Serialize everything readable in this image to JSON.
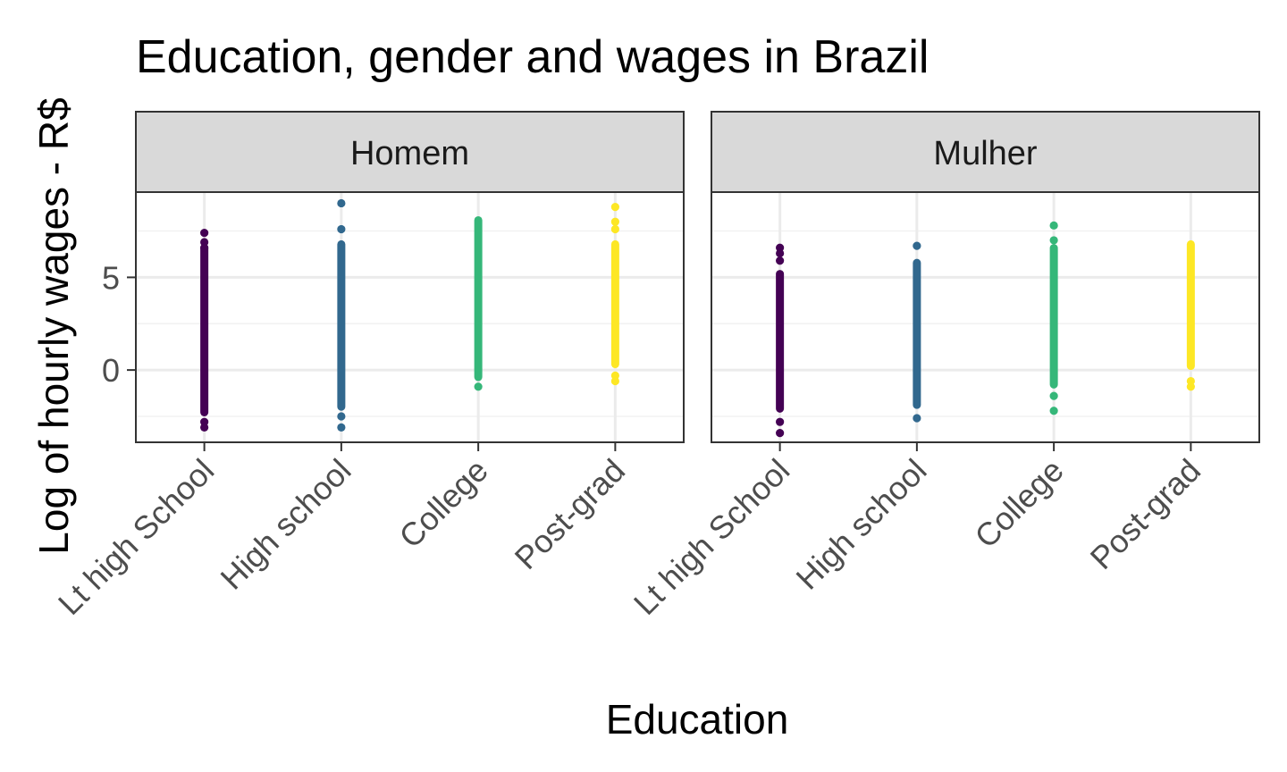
{
  "chart_data": {
    "type": "scatter",
    "title": "Education, gender and wages in Brazil",
    "xlabel": "Education",
    "ylabel": "Log of hourly wages - R$",
    "categories": [
      "Lt high School",
      "High school",
      "College",
      "Post-grad"
    ],
    "category_colors": [
      "#440154",
      "#31688e",
      "#35b779",
      "#fde725"
    ],
    "yticks": [
      0,
      5
    ],
    "ylim": [
      -3.9,
      9.6
    ],
    "grid": true,
    "panels": [
      {
        "name": "Homem",
        "series": [
          {
            "category": "Lt high School",
            "range": [
              -2.5,
              6.8
            ],
            "outliers": [
              7.4,
              6.9,
              6.6,
              -2.8,
              -3.1
            ]
          },
          {
            "category": "High school",
            "range": [
              -2.2,
              7.0
            ],
            "outliers": [
              9.0,
              7.6,
              -2.5,
              -3.1
            ]
          },
          {
            "category": "College",
            "range": [
              -0.6,
              8.3
            ],
            "outliers": [
              -0.9
            ]
          },
          {
            "category": "Post-grad",
            "range": [
              0.1,
              7.0
            ],
            "outliers": [
              8.8,
              8.0,
              7.6,
              -0.3,
              -0.6
            ]
          }
        ]
      },
      {
        "name": "Mulher",
        "series": [
          {
            "category": "Lt high School",
            "range": [
              -2.3,
              5.4
            ],
            "outliers": [
              6.6,
              6.3,
              5.9,
              -2.8,
              -3.4
            ]
          },
          {
            "category": "High school",
            "range": [
              -2.1,
              6.0
            ],
            "outliers": [
              6.7,
              -2.6
            ]
          },
          {
            "category": "College",
            "range": [
              -1.0,
              6.8
            ],
            "outliers": [
              7.8,
              7.0,
              -1.4,
              -2.2
            ]
          },
          {
            "category": "Post-grad",
            "range": [
              0.0,
              7.0
            ],
            "outliers": [
              -0.6,
              -0.9
            ]
          }
        ]
      }
    ]
  }
}
